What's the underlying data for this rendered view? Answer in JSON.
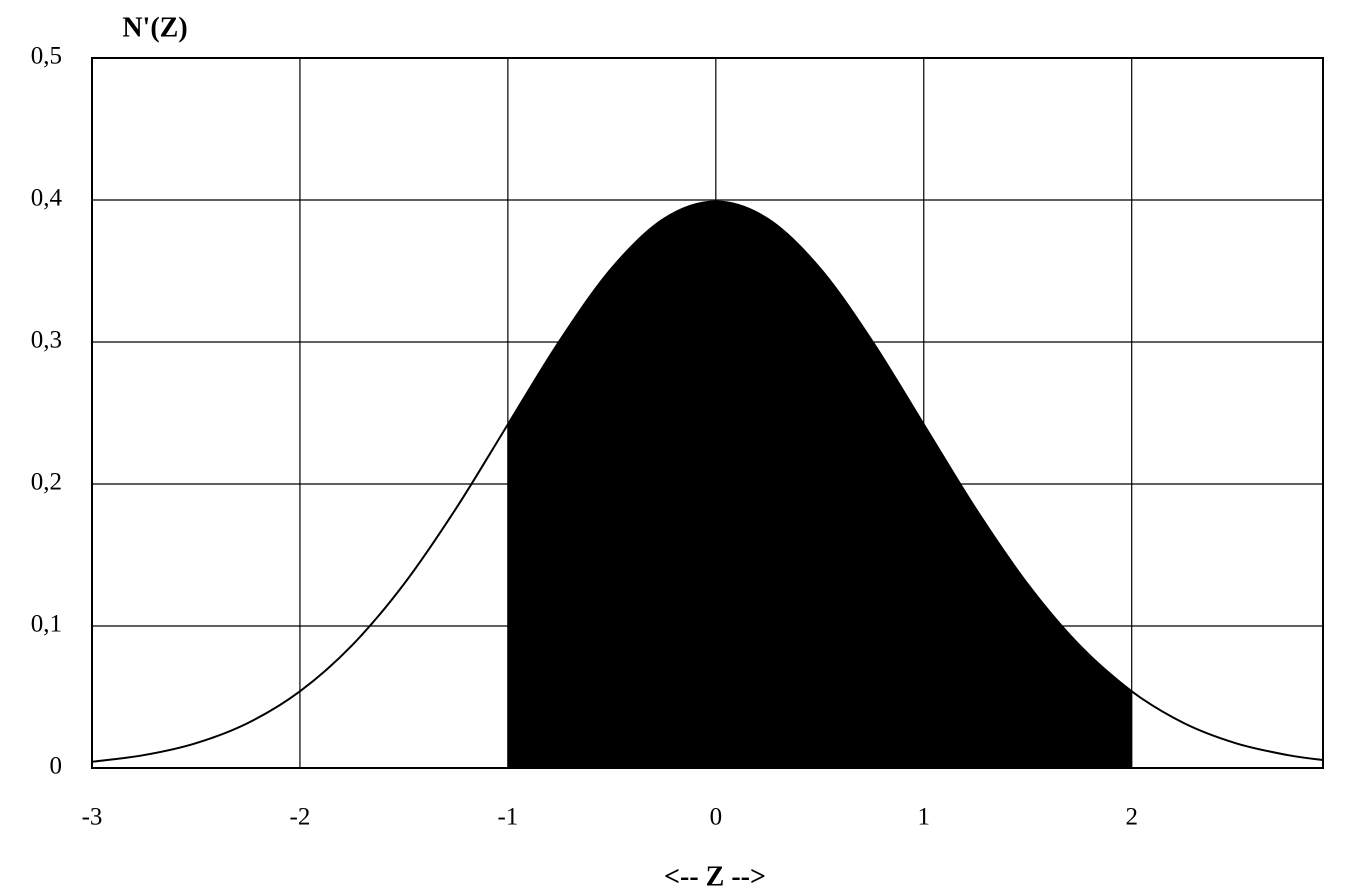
{
  "chart_data": {
    "type": "line",
    "title": "N'(Z)",
    "x_label": "<-- Z -->",
    "series": [
      {
        "name": "curve",
        "color": "#000000",
        "x": [
          -3,
          -2.75,
          -2.5,
          -2.25,
          -2,
          -1.75,
          -1.5,
          -1.25,
          -1,
          -0.75,
          -0.5,
          -0.25,
          0,
          0.25,
          0.5,
          0.75,
          1,
          1.25,
          1.5,
          1.75,
          2,
          2.25,
          2.5,
          2.75,
          2.92
        ],
        "values": [
          0.0044,
          0.0091,
          0.0175,
          0.0317,
          0.054,
          0.0863,
          0.1295,
          0.1826,
          0.242,
          0.3011,
          0.3521,
          0.3867,
          0.3989,
          0.3867,
          0.3521,
          0.3011,
          0.242,
          0.1826,
          0.1295,
          0.0863,
          0.054,
          0.0317,
          0.0175,
          0.0091,
          0.0056
        ]
      },
      {
        "name": "shaded",
        "color": "#000000",
        "fill": true,
        "x": [
          -1,
          -0.75,
          -0.5,
          -0.25,
          0,
          0.25,
          0.5,
          0.75,
          1,
          1.25,
          1.5,
          1.75,
          2
        ],
        "values": [
          0.242,
          0.3011,
          0.3521,
          0.3867,
          0.3989,
          0.3867,
          0.3521,
          0.3011,
          0.242,
          0.1826,
          0.1295,
          0.0863,
          0.054
        ]
      }
    ],
    "xlim": [
      -3,
      2.92
    ],
    "xticks": [
      -3,
      -2,
      -1,
      0,
      1,
      2
    ],
    "ylim": [
      0,
      0.5
    ],
    "yticks": [
      0,
      {
        "value": 0.1,
        "label": "0,1"
      },
      {
        "value": 0.2,
        "label": "0,2"
      },
      {
        "value": 0.3,
        "label": "0,3"
      },
      {
        "value": 0.4,
        "label": "0,4"
      },
      {
        "value": 0.5,
        "label": "0,5"
      }
    ],
    "grid": true
  }
}
